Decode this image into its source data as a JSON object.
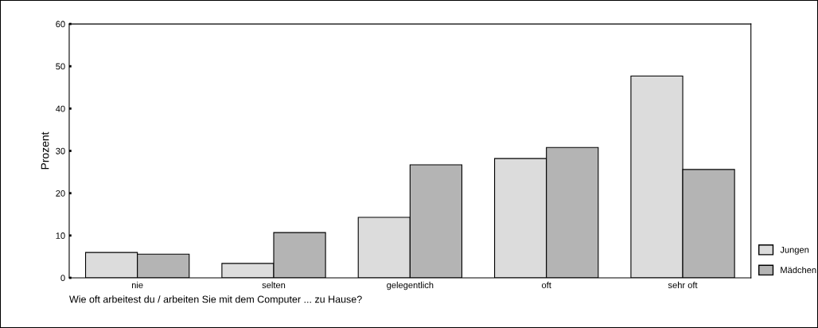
{
  "chart_data": {
    "type": "bar",
    "ylabel": "Prozent",
    "categories": [
      "nie",
      "selten",
      "gelegentlich",
      "oft",
      "sehr oft"
    ],
    "series": [
      {
        "name": "Jungen",
        "color": "#dcdcdc",
        "values": [
          6.0,
          3.4,
          14.3,
          28.2,
          47.7
        ]
      },
      {
        "name": "Mädchen",
        "color": "#b4b4b4",
        "values": [
          5.6,
          10.7,
          26.7,
          30.8,
          25.6
        ]
      }
    ],
    "ylim": [
      0,
      60
    ],
    "yticks": [
      0,
      10,
      20,
      30,
      40,
      50,
      60
    ],
    "grid": false,
    "legend": "bottom right",
    "annotations": [
      "Wie oft arbeitest du / arbeiten Sie mit dem Computer ... zu Hause?"
    ]
  }
}
